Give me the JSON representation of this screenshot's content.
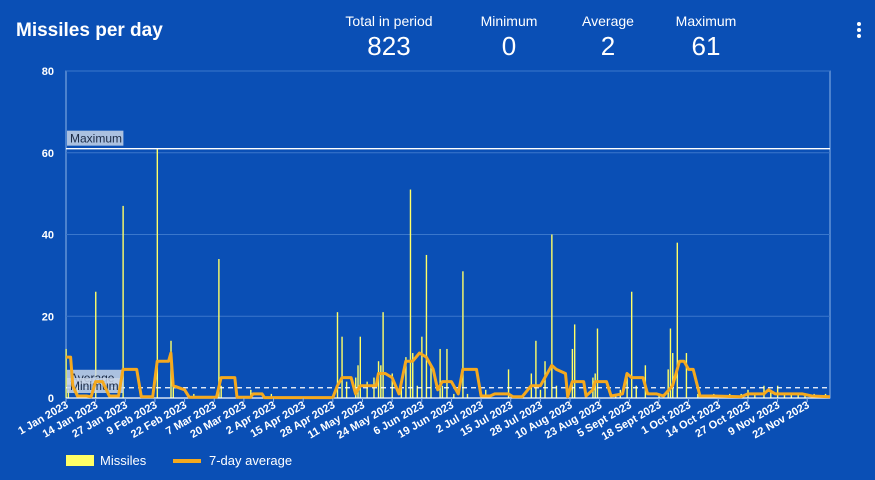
{
  "header": {
    "title": "Missiles per day",
    "stats": [
      {
        "label": "Total in period",
        "value": "823"
      },
      {
        "label": "Minimum",
        "value": "0"
      },
      {
        "label": "Average",
        "value": "2"
      },
      {
        "label": "Maximum",
        "value": "61"
      }
    ]
  },
  "colors": {
    "background": "#0a4fb5",
    "bars": "#ffff66",
    "line": "#f5a91e",
    "grid": "#3a77cc"
  },
  "chart_data": {
    "type": "bar",
    "title": "Missiles per day",
    "x_start": "2023-01-01",
    "x_end": "2023-12-02",
    "xticks": [
      "1 Jan 2023",
      "14 Jan 2023",
      "27 Jan 2023",
      "9 Feb 2023",
      "22 Feb 2023",
      "7 Mar 2023",
      "20 Mar 2023",
      "2 Apr 2023",
      "15 Apr 2023",
      "28 Apr 2023",
      "11 May 2023",
      "24 May 2023",
      "6 Jun 2023",
      "19 Jun 2023",
      "2 Jul 2023",
      "15 Jul 2023",
      "28 Jul 2023",
      "10 Aug 2023",
      "23 Aug 2023",
      "5 Sept 2023",
      "18 Sept 2023",
      "1 Oct 2023",
      "14 Oct 2023",
      "27 Oct 2023",
      "9 Nov 2023",
      "22 Nov 2023"
    ],
    "yticks": [
      0,
      20,
      40,
      60,
      80
    ],
    "ylim": [
      0,
      80
    ],
    "grid": true,
    "reference_lines": [
      {
        "label": "Maximum",
        "value": 61,
        "style": "solid"
      },
      {
        "label": "Average",
        "value": 2.5,
        "style": "dashed"
      },
      {
        "label": "Minimum",
        "value": 0,
        "style": "solid"
      }
    ],
    "series": [
      {
        "name": "Missiles",
        "type": "bar",
        "points": [
          [
            "2023-01-01",
            12
          ],
          [
            "2023-01-02",
            2
          ],
          [
            "2023-01-06",
            3
          ],
          [
            "2023-01-12",
            1
          ],
          [
            "2023-01-14",
            26
          ],
          [
            "2023-01-20",
            1
          ],
          [
            "2023-01-26",
            47
          ],
          [
            "2023-02-03",
            1
          ],
          [
            "2023-02-10",
            61
          ],
          [
            "2023-02-16",
            14
          ],
          [
            "2023-02-17",
            5
          ],
          [
            "2023-02-26",
            1
          ],
          [
            "2023-03-09",
            34
          ],
          [
            "2023-03-10",
            3
          ],
          [
            "2023-03-23",
            2
          ],
          [
            "2023-04-01",
            1
          ],
          [
            "2023-04-30",
            21
          ],
          [
            "2023-05-02",
            15
          ],
          [
            "2023-05-04",
            4
          ],
          [
            "2023-05-08",
            5
          ],
          [
            "2023-05-09",
            8
          ],
          [
            "2023-05-10",
            15
          ],
          [
            "2023-05-13",
            4
          ],
          [
            "2023-05-16",
            5
          ],
          [
            "2023-05-18",
            9
          ],
          [
            "2023-05-19",
            8
          ],
          [
            "2023-05-20",
            21
          ],
          [
            "2023-05-24",
            6
          ],
          [
            "2023-05-28",
            3
          ],
          [
            "2023-05-30",
            10
          ],
          [
            "2023-06-01",
            51
          ],
          [
            "2023-06-02",
            11
          ],
          [
            "2023-06-04",
            3
          ],
          [
            "2023-06-06",
            15
          ],
          [
            "2023-06-08",
            35
          ],
          [
            "2023-06-10",
            8
          ],
          [
            "2023-06-14",
            12
          ],
          [
            "2023-06-15",
            3
          ],
          [
            "2023-06-17",
            12
          ],
          [
            "2023-06-20",
            1
          ],
          [
            "2023-06-24",
            31
          ],
          [
            "2023-06-26",
            1
          ],
          [
            "2023-07-04",
            2
          ],
          [
            "2023-07-14",
            7
          ],
          [
            "2023-07-24",
            6
          ],
          [
            "2023-07-26",
            14
          ],
          [
            "2023-07-28",
            2
          ],
          [
            "2023-07-30",
            9
          ],
          [
            "2023-08-02",
            40
          ],
          [
            "2023-08-04",
            3
          ],
          [
            "2023-08-11",
            12
          ],
          [
            "2023-08-12",
            18
          ],
          [
            "2023-08-20",
            5
          ],
          [
            "2023-08-21",
            6
          ],
          [
            "2023-08-22",
            17
          ],
          [
            "2023-08-30",
            1
          ],
          [
            "2023-09-01",
            2
          ],
          [
            "2023-09-04",
            5
          ],
          [
            "2023-09-06",
            26
          ],
          [
            "2023-09-08",
            3
          ],
          [
            "2023-09-12",
            8
          ],
          [
            "2023-09-18",
            1
          ],
          [
            "2023-09-20",
            1
          ],
          [
            "2023-09-22",
            7
          ],
          [
            "2023-09-23",
            17
          ],
          [
            "2023-09-24",
            11
          ],
          [
            "2023-09-26",
            38
          ],
          [
            "2023-09-30",
            11
          ],
          [
            "2023-10-05",
            1
          ],
          [
            "2023-10-12",
            1
          ],
          [
            "2023-10-19",
            1
          ],
          [
            "2023-10-24",
            1
          ],
          [
            "2023-10-27",
            2
          ],
          [
            "2023-10-30",
            1
          ],
          [
            "2023-11-03",
            3
          ],
          [
            "2023-11-06",
            2
          ],
          [
            "2023-11-09",
            3
          ],
          [
            "2023-11-12",
            1
          ],
          [
            "2023-11-15",
            1
          ],
          [
            "2023-11-18",
            1
          ],
          [
            "2023-11-21",
            1
          ],
          [
            "2023-11-25",
            1
          ],
          [
            "2023-11-30",
            1
          ]
        ]
      },
      {
        "name": "7-day average",
        "type": "line",
        "points": [
          [
            "2023-01-01",
            10
          ],
          [
            "2023-01-03",
            10
          ],
          [
            "2023-01-04",
            3
          ],
          [
            "2023-01-06",
            0.5
          ],
          [
            "2023-01-10",
            0.5
          ],
          [
            "2023-01-12",
            0.3
          ],
          [
            "2023-01-14",
            4
          ],
          [
            "2023-01-17",
            4
          ],
          [
            "2023-01-20",
            0.5
          ],
          [
            "2023-01-24",
            0.5
          ],
          [
            "2023-01-26",
            7
          ],
          [
            "2023-02-01",
            7
          ],
          [
            "2023-02-03",
            0.3
          ],
          [
            "2023-02-08",
            0.3
          ],
          [
            "2023-02-10",
            9
          ],
          [
            "2023-02-15",
            9
          ],
          [
            "2023-02-16",
            11
          ],
          [
            "2023-02-17",
            3
          ],
          [
            "2023-02-22",
            2
          ],
          [
            "2023-02-24",
            0.2
          ],
          [
            "2023-03-08",
            0.2
          ],
          [
            "2023-03-10",
            5
          ],
          [
            "2023-03-16",
            5
          ],
          [
            "2023-03-17",
            0.2
          ],
          [
            "2023-03-23",
            0.2
          ],
          [
            "2023-03-24",
            1
          ],
          [
            "2023-03-28",
            1
          ],
          [
            "2023-03-29",
            0.1
          ],
          [
            "2023-04-28",
            0.1
          ],
          [
            "2023-04-30",
            3
          ],
          [
            "2023-05-02",
            5
          ],
          [
            "2023-05-06",
            5
          ],
          [
            "2023-05-08",
            1
          ],
          [
            "2023-05-10",
            3
          ],
          [
            "2023-05-15",
            3
          ],
          [
            "2023-05-17",
            3
          ],
          [
            "2023-05-18",
            6
          ],
          [
            "2023-05-21",
            6
          ],
          [
            "2023-05-24",
            5
          ],
          [
            "2023-05-27",
            1
          ],
          [
            "2023-05-30",
            9
          ],
          [
            "2023-06-02",
            9
          ],
          [
            "2023-06-05",
            11
          ],
          [
            "2023-06-08",
            10
          ],
          [
            "2023-06-11",
            7
          ],
          [
            "2023-06-13",
            2
          ],
          [
            "2023-06-15",
            4
          ],
          [
            "2023-06-19",
            4
          ],
          [
            "2023-06-22",
            1
          ],
          [
            "2023-06-24",
            7
          ],
          [
            "2023-06-30",
            7
          ],
          [
            "2023-07-02",
            0.5
          ],
          [
            "2023-07-06",
            0.5
          ],
          [
            "2023-07-08",
            1
          ],
          [
            "2023-07-14",
            1
          ],
          [
            "2023-07-16",
            0.3
          ],
          [
            "2023-07-20",
            0.3
          ],
          [
            "2023-07-24",
            3
          ],
          [
            "2023-07-28",
            3
          ],
          [
            "2023-07-31",
            6
          ],
          [
            "2023-08-02",
            8
          ],
          [
            "2023-08-04",
            7
          ],
          [
            "2023-08-08",
            6
          ],
          [
            "2023-08-09",
            0.3
          ],
          [
            "2023-08-11",
            4
          ],
          [
            "2023-08-16",
            4
          ],
          [
            "2023-08-17",
            0.5
          ],
          [
            "2023-08-20",
            2
          ],
          [
            "2023-08-21",
            4
          ],
          [
            "2023-08-26",
            4
          ],
          [
            "2023-08-28",
            0.5
          ],
          [
            "2023-09-02",
            1
          ],
          [
            "2023-09-04",
            6
          ],
          [
            "2023-09-06",
            5
          ],
          [
            "2023-09-11",
            5
          ],
          [
            "2023-09-13",
            1
          ],
          [
            "2023-09-17",
            1
          ],
          [
            "2023-09-20",
            0.5
          ],
          [
            "2023-09-24",
            3
          ],
          [
            "2023-09-27",
            9
          ],
          [
            "2023-09-29",
            9
          ],
          [
            "2023-10-01",
            7
          ],
          [
            "2023-10-03",
            7
          ],
          [
            "2023-10-06",
            0.5
          ],
          [
            "2023-10-12",
            0.5
          ],
          [
            "2023-10-24",
            0.3
          ],
          [
            "2023-10-27",
            1
          ],
          [
            "2023-11-03",
            1
          ],
          [
            "2023-11-05",
            2
          ],
          [
            "2023-11-08",
            1
          ],
          [
            "2023-11-12",
            1
          ],
          [
            "2023-11-20",
            1
          ],
          [
            "2023-11-24",
            0.5
          ],
          [
            "2023-12-02",
            0.3
          ]
        ]
      }
    ],
    "legend": {
      "placement": "bottom-left",
      "items": [
        "Missiles",
        "7-day average"
      ]
    }
  }
}
